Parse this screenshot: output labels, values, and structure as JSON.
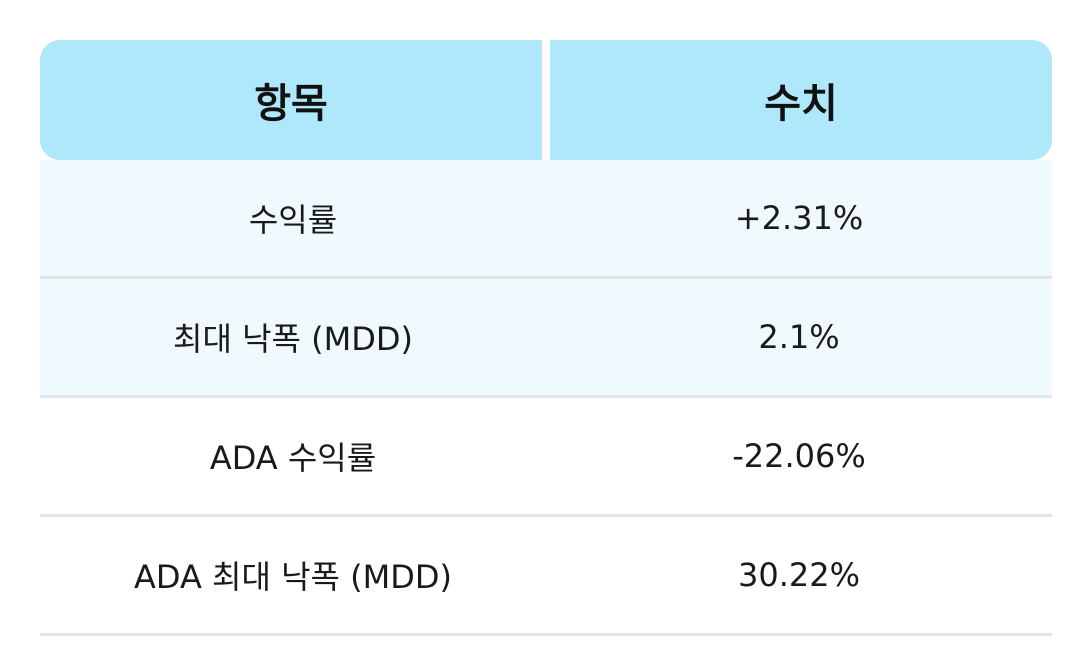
{
  "table": {
    "headers": [
      "항목",
      "수치"
    ],
    "rows": [
      {
        "label": "수익률",
        "value": "+2.31%",
        "highlight": true
      },
      {
        "label": "최대 낙폭 (MDD)",
        "value": "2.1%",
        "highlight": true
      },
      {
        "label": "ADA 수익률",
        "value": "-22.06%",
        "highlight": false
      },
      {
        "label": "ADA 최대 낙폭 (MDD)",
        "value": "30.22%",
        "highlight": false
      }
    ]
  },
  "colors": {
    "header_bg": "#afe8fb",
    "highlight_row_bg": "#eff9fe",
    "divider": "#e3e6e8"
  }
}
